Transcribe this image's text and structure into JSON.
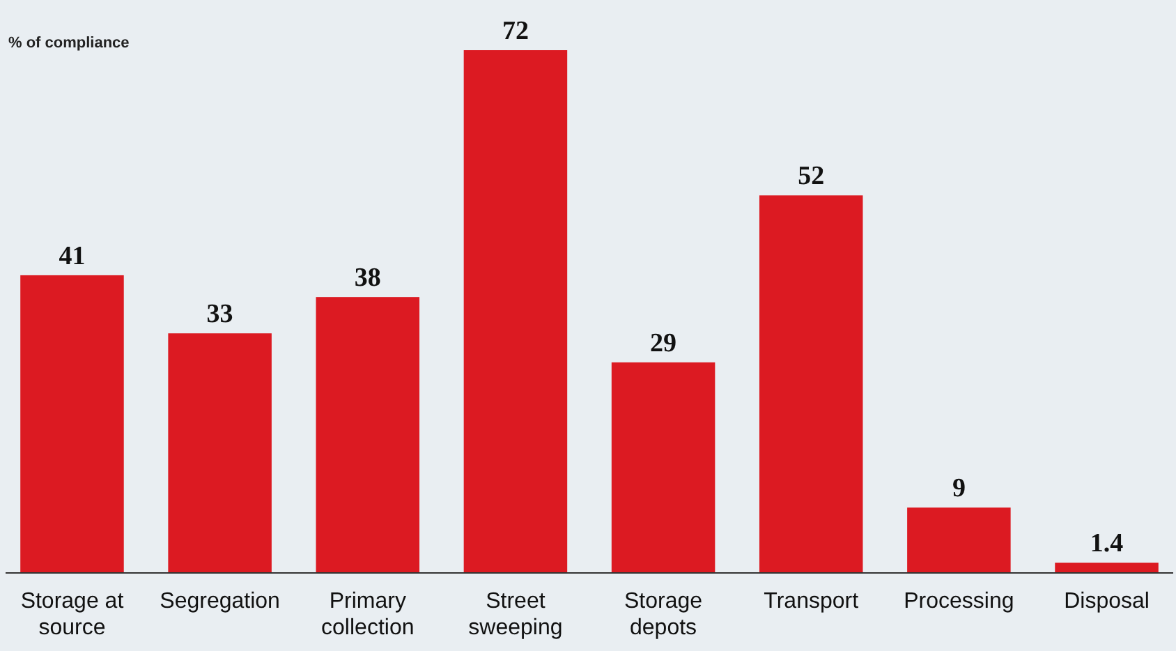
{
  "chart_data": {
    "type": "bar",
    "ylabel": "% of compliance",
    "categories": [
      "Storage at source",
      "Segregation",
      "Primary collection",
      "Street sweeping",
      "Storage depots",
      "Transport",
      "Processing",
      "Disposal"
    ],
    "values": [
      41,
      33,
      38,
      72,
      29,
      52,
      9,
      1.4
    ],
    "color": "#dc1a22",
    "data_labels": true
  }
}
